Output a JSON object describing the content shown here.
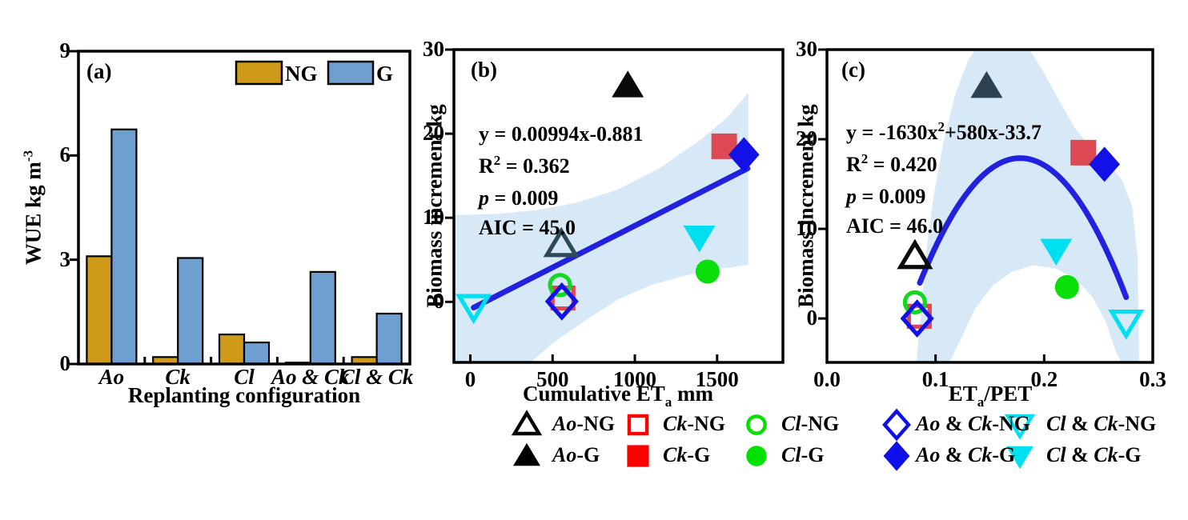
{
  "figure": {
    "background": "#FFFFFF",
    "band_color": "#D7E9F7",
    "fit_line_color": "#2222DE"
  },
  "chart_data": [
    {
      "id": "a",
      "type": "bar",
      "letter": "(a)",
      "xlabel": "Replanting configuration",
      "ylabel": {
        "main": "WUE kg m",
        "sup": "-3"
      },
      "categories": [
        "Ao",
        "Ck",
        "Cl",
        "Ao & Ck",
        "Cl & Ck"
      ],
      "series": [
        {
          "name": "NG",
          "color": "#CF9A18",
          "values": [
            3.1,
            0.2,
            0.85,
            0.04,
            0.2
          ]
        },
        {
          "name": "G",
          "color": "#6F9FD0",
          "values": [
            6.75,
            3.05,
            0.62,
            2.65,
            1.45
          ]
        }
      ],
      "ylim": [
        0,
        9
      ],
      "yticks": [
        "0",
        "3",
        "6",
        "9"
      ],
      "legend": {
        "ng_label": "NG",
        "g_label": "G"
      }
    },
    {
      "id": "b",
      "type": "scatter",
      "letter": "(b)",
      "xlabel": {
        "main": "Cumulative ET",
        "sub": "a",
        "rest": " mm"
      },
      "ylabel": "Biomass increment kg",
      "xlim": [
        -100,
        1900
      ],
      "ylim": [
        -7.2,
        30.0
      ],
      "xticks": [
        0,
        500,
        1000,
        1500
      ],
      "xtick_labels": [
        "0",
        "500",
        "1000",
        "1500"
      ],
      "yticks": [
        0,
        10,
        20,
        30
      ],
      "ytick_labels": [
        "0",
        "10",
        "20",
        "30"
      ],
      "stats": {
        "eq_pre": "y = 0.00994x-0.881",
        "eq_sup": "",
        "eq_post": "",
        "r2_label": "R",
        "r2_sup": "2",
        "r2_eq": " = 0.362",
        "p_label": "p",
        "p_eq": " = 0.009",
        "aic_text": "AIC = 45.0"
      },
      "fit": {
        "kind": "linear",
        "slope": 0.00994,
        "intercept": -0.881,
        "x_start": 20,
        "x_end": 1685
      },
      "band_outline": [
        [
          -95,
          10.3
        ],
        [
          150,
          10.45
        ],
        [
          400,
          10.9
        ],
        [
          650,
          11.8
        ],
        [
          900,
          13.4
        ],
        [
          1150,
          15.9
        ],
        [
          1400,
          19.3
        ],
        [
          1560,
          21.9
        ],
        [
          1690,
          24.9
        ],
        [
          1690,
          4.4
        ],
        [
          1500,
          3.9
        ],
        [
          1300,
          3.1
        ],
        [
          1100,
          2.0
        ],
        [
          900,
          0.3
        ],
        [
          700,
          -2.2
        ],
        [
          500,
          -4.9
        ],
        [
          350,
          -7.5
        ],
        [
          -95,
          -7.5
        ]
      ],
      "points": [
        {
          "label": "Cl & Ck-NG",
          "shape": "invtriangle",
          "filled": false,
          "color": "#00DFEF",
          "x": 20,
          "y": -0.55
        },
        {
          "label": "Ck-NG",
          "shape": "square",
          "filled": false,
          "color": "#DC4853",
          "x": 563,
          "y": 0.45
        },
        {
          "label": "Cl-NG",
          "shape": "circle",
          "filled": false,
          "color": "#12D822",
          "x": 545,
          "y": 2.0
        },
        {
          "label": "Ao & Ck-NG",
          "shape": "diamond",
          "filled": false,
          "color": "#1212E8",
          "x": 556,
          "y": 0.05
        },
        {
          "label": "Ao-NG",
          "shape": "triangle",
          "filled": false,
          "color": "#2E4A58",
          "x": 553,
          "y": 6.8
        },
        {
          "label": "Ao-G",
          "shape": "triangle",
          "filled": true,
          "color": "#0A0A0A",
          "x": 957,
          "y": 25.7
        },
        {
          "label": "Cl & Ck-G",
          "shape": "invtriangle",
          "filled": true,
          "color": "#00DFEF",
          "x": 1392,
          "y": 7.7
        },
        {
          "label": "Cl-G",
          "shape": "circle",
          "filled": true,
          "color": "#0ADF0A",
          "x": 1442,
          "y": 3.6
        },
        {
          "label": "Ck-G",
          "shape": "square",
          "filled": true,
          "color": "#DC4853",
          "x": 1543,
          "y": 18.5
        },
        {
          "label": "Ao & Ck-G",
          "shape": "diamond",
          "filled": true,
          "color": "#1212E8",
          "x": 1663,
          "y": 17.5
        }
      ]
    },
    {
      "id": "c",
      "type": "scatter",
      "letter": "(c)",
      "xlabel": {
        "main": "ET",
        "sub": "a",
        "rest": "/PET"
      },
      "ylabel": "Biomass increment kg",
      "xlim": [
        0,
        0.3
      ],
      "ylim": [
        -4.9,
        30.0
      ],
      "xticks": [
        0,
        0.1,
        0.2,
        0.3
      ],
      "xtick_labels": [
        "0.0",
        "0.1",
        "0.2",
        "0.3"
      ],
      "yticks": [
        0,
        10,
        20,
        30
      ],
      "ytick_labels": [
        "0",
        "10",
        "20",
        "30"
      ],
      "stats": {
        "eq_pre": "y = -1630x",
        "eq_sup": "2",
        "eq_post": "+580x-33.7",
        "r2_label": "R",
        "r2_sup": "2",
        "r2_eq": " = 0.420",
        "p_label": "p",
        "p_eq": " = 0.009",
        "aic_text": "AIC = 46.0"
      },
      "fit": {
        "kind": "quadratic",
        "a": -1630,
        "b": 580,
        "c": -33.7,
        "x_start": 0.0855,
        "x_end": 0.2755
      },
      "band_outline": [
        [
          0.082,
          -5.4
        ],
        [
          0.086,
          0
        ],
        [
          0.091,
          7
        ],
        [
          0.098,
          13.5
        ],
        [
          0.107,
          19.5
        ],
        [
          0.118,
          25
        ],
        [
          0.13,
          28.8
        ],
        [
          0.14,
          30.6
        ],
        [
          0.183,
          30.6
        ],
        [
          0.197,
          28
        ],
        [
          0.212,
          24.7
        ],
        [
          0.228,
          21.3
        ],
        [
          0.244,
          18.9
        ],
        [
          0.26,
          17.2
        ],
        [
          0.272,
          15.4
        ],
        [
          0.281,
          12.5
        ],
        [
          0.286,
          7
        ],
        [
          0.2875,
          -5.4
        ],
        [
          0.2725,
          -5.4
        ],
        [
          0.2655,
          -3.5
        ],
        [
          0.2565,
          -0.3
        ],
        [
          0.244,
          2.5
        ],
        [
          0.228,
          4.5
        ],
        [
          0.21,
          5.6
        ],
        [
          0.19,
          5.95
        ],
        [
          0.17,
          5.2
        ],
        [
          0.152,
          3.6
        ],
        [
          0.136,
          1.0
        ],
        [
          0.122,
          -2.6
        ],
        [
          0.111,
          -5.4
        ],
        [
          0.082,
          -5.4
        ]
      ],
      "points": [
        {
          "label": "Cl & Ck-NG",
          "shape": "invtriangle",
          "filled": false,
          "color": "#00DFEF",
          "x": 0.2755,
          "y": -0.4
        },
        {
          "label": "Ck-NG",
          "shape": "square",
          "filled": false,
          "color": "#DC4853",
          "x": 0.085,
          "y": 0.25
        },
        {
          "label": "Cl-NG",
          "shape": "circle",
          "filled": false,
          "color": "#12D822",
          "x": 0.081,
          "y": 1.8
        },
        {
          "label": "Ao & Ck-NG",
          "shape": "diamond",
          "filled": false,
          "color": "#1212E8",
          "x": 0.083,
          "y": 0.0
        },
        {
          "label": "Ao-NG",
          "shape": "triangle",
          "filled": false,
          "color": "#0A0A0A",
          "x": 0.081,
          "y": 6.9
        },
        {
          "label": "Ao-G",
          "shape": "triangle",
          "filled": true,
          "color": "#2E4150",
          "x": 0.147,
          "y": 25.9
        },
        {
          "label": "Cl & Ck-G",
          "shape": "invtriangle",
          "filled": true,
          "color": "#00DFEF",
          "x": 0.211,
          "y": 7.6
        },
        {
          "label": "Cl-G",
          "shape": "circle",
          "filled": true,
          "color": "#0ADF0A",
          "x": 0.221,
          "y": 3.5
        },
        {
          "label": "Ck-G",
          "shape": "square",
          "filled": true,
          "color": "#DC4853",
          "x": 0.236,
          "y": 18.5
        },
        {
          "label": "Ao & Ck-G",
          "shape": "diamond",
          "filled": true,
          "color": "#1212E8",
          "x": 0.2555,
          "y": 17.2
        }
      ]
    }
  ],
  "bottom_legend": {
    "rows": [
      {
        "items": [
          {
            "parts": [
              {
                "text": "Ao",
                "italic": true
              },
              {
                "text": "-NG",
                "italic": false
              }
            ],
            "shape": "triangle",
            "filled": false,
            "color": "#000000"
          },
          {
            "parts": [
              {
                "text": "Ck",
                "italic": true
              },
              {
                "text": "-NG",
                "italic": false
              }
            ],
            "shape": "square",
            "filled": false,
            "color": "#FF0000"
          },
          {
            "parts": [
              {
                "text": "Cl",
                "italic": true
              },
              {
                "text": "-NG",
                "italic": false
              }
            ],
            "shape": "circle",
            "filled": false,
            "color": "#00E100"
          },
          {
            "parts": [
              {
                "text": "Ao",
                "italic": true
              },
              {
                "text": " & ",
                "italic": false
              },
              {
                "text": "Ck",
                "italic": true
              },
              {
                "text": "-NG",
                "italic": false
              }
            ],
            "shape": "diamond",
            "filled": false,
            "color": "#0F0FE8"
          },
          {
            "parts": [
              {
                "text": "Cl",
                "italic": true
              },
              {
                "text": " & ",
                "italic": false
              },
              {
                "text": "Ck",
                "italic": true
              },
              {
                "text": "-NG",
                "italic": false
              }
            ],
            "shape": "invtriangle",
            "filled": false,
            "color": "#00E0F0"
          }
        ]
      },
      {
        "items": [
          {
            "parts": [
              {
                "text": "Ao",
                "italic": true
              },
              {
                "text": "-G",
                "italic": false
              }
            ],
            "shape": "triangle",
            "filled": true,
            "color": "#000000"
          },
          {
            "parts": [
              {
                "text": "Ck",
                "italic": true
              },
              {
                "text": "-G",
                "italic": false
              }
            ],
            "shape": "square",
            "filled": true,
            "color": "#FF0000"
          },
          {
            "parts": [
              {
                "text": "Cl",
                "italic": true
              },
              {
                "text": "-G",
                "italic": false
              }
            ],
            "shape": "circle",
            "filled": true,
            "color": "#00E100"
          },
          {
            "parts": [
              {
                "text": "Ao",
                "italic": true
              },
              {
                "text": " & ",
                "italic": false
              },
              {
                "text": "Ck",
                "italic": true
              },
              {
                "text": "-G",
                "italic": false
              }
            ],
            "shape": "diamond",
            "filled": true,
            "color": "#0F0FE8"
          },
          {
            "parts": [
              {
                "text": "Cl",
                "italic": true
              },
              {
                "text": " & ",
                "italic": false
              },
              {
                "text": "Ck",
                "italic": true
              },
              {
                "text": "-G",
                "italic": false
              }
            ],
            "shape": "invtriangle",
            "filled": true,
            "color": "#00E0F0"
          }
        ]
      }
    ]
  }
}
